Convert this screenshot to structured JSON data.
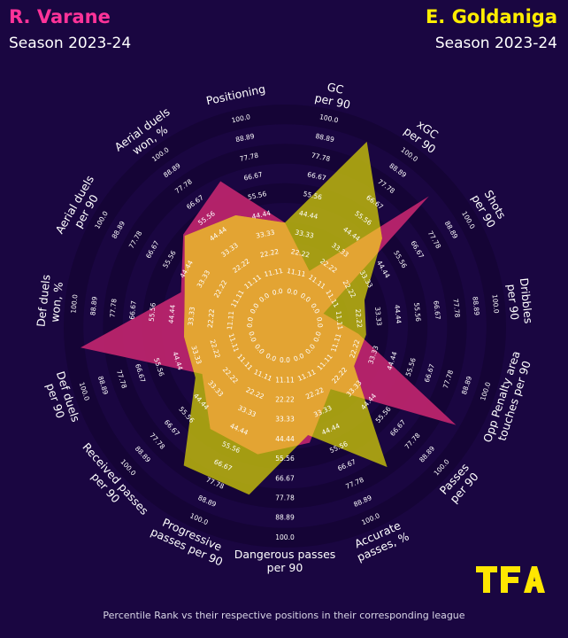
{
  "header": {
    "left": {
      "name": "R. Varane",
      "season": "Season 2023-24"
    },
    "right": {
      "name": "E. Goldaniga",
      "season": "Season 2023-24"
    }
  },
  "colors": {
    "background": "#1a0641",
    "ring": "#150436",
    "player1": "#c3266f",
    "player2": "#b8b20e",
    "overlap": "#e3a433",
    "name1": "#ff3399",
    "name2": "#ffee00",
    "logo": "#ffe600"
  },
  "logo": {
    "text": "TFA",
    "icon": "tfa-logo"
  },
  "footer": {
    "text": "Percentile Rank vs their respective positions in their corresponding league"
  },
  "chart_data": {
    "type": "radar",
    "ring_labels": [
      "0.0",
      "11.11",
      "22.22",
      "33.33",
      "44.44",
      "55.56",
      "66.67",
      "77.78",
      "88.89",
      "100.0"
    ],
    "range": [
      0,
      100
    ],
    "categories": [
      "GC\nper 90",
      "xGC\nper 90",
      "Shots\nper 90",
      "Dribbles\nper 90",
      "Opp Penalty area\ntouches per 90",
      "Passes\nper 90",
      "Accurate\npasses, %",
      "Dangerous passes\nper 90",
      "Progressive\npasses per 90",
      "Received passes\nper 90",
      "Def duels\nper 90",
      "Def duels\nwon, %",
      "Aerial duels\nper 90",
      "Aerial duels\nwon, %",
      "Positioning"
    ],
    "series": [
      {
        "name": "R. Varane",
        "values": [
          40,
          18,
          86,
          8,
          25,
          88,
          27,
          48,
          54,
          52,
          36,
          92,
          43,
          57,
          68
        ]
      },
      {
        "name": "E. Goldaniga",
        "values": [
          40,
          90,
          54,
          30,
          29,
          28,
          76,
          44,
          75,
          75,
          40,
          39,
          41,
          56,
          49
        ]
      }
    ]
  }
}
